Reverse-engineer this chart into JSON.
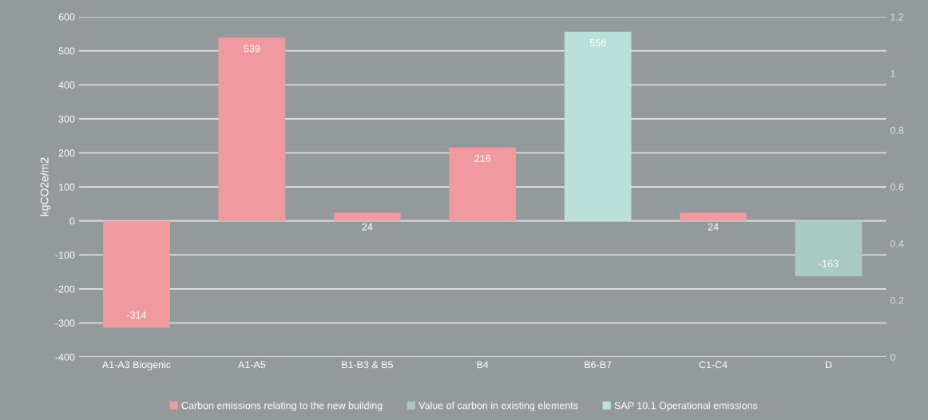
{
  "chart_data": {
    "type": "bar",
    "ylabel": "kgCO2e/m2",
    "categories": [
      "A1-A3 Biogenic",
      "A1-A5",
      "B1-B3 & B5",
      "B4",
      "B6-B7",
      "C1-C4",
      "D"
    ],
    "series": [
      {
        "name": "Carbon emissions relating to the new building",
        "color": "#f09aa0",
        "values": [
          -314,
          539,
          24,
          216,
          null,
          24,
          null
        ]
      },
      {
        "name": "Value of carbon in existing elements",
        "color": "#a9c9c3",
        "values": [
          null,
          null,
          null,
          null,
          null,
          null,
          -163
        ]
      },
      {
        "name": "SAP 10.1 Operational emissions",
        "color": "#b9e0d9",
        "values": [
          null,
          null,
          null,
          null,
          556,
          null,
          null
        ]
      }
    ],
    "ylim": [
      -400,
      600
    ],
    "yticks": [
      -400,
      -300,
      -200,
      -100,
      0,
      100,
      200,
      300,
      400,
      500,
      600
    ],
    "y2lim": [
      0,
      1.2
    ],
    "y2ticks": [
      0,
      0.2,
      0.4,
      0.6,
      0.8,
      1,
      1.2
    ],
    "grid": "y",
    "legend": "bottom",
    "data_labels": true
  }
}
